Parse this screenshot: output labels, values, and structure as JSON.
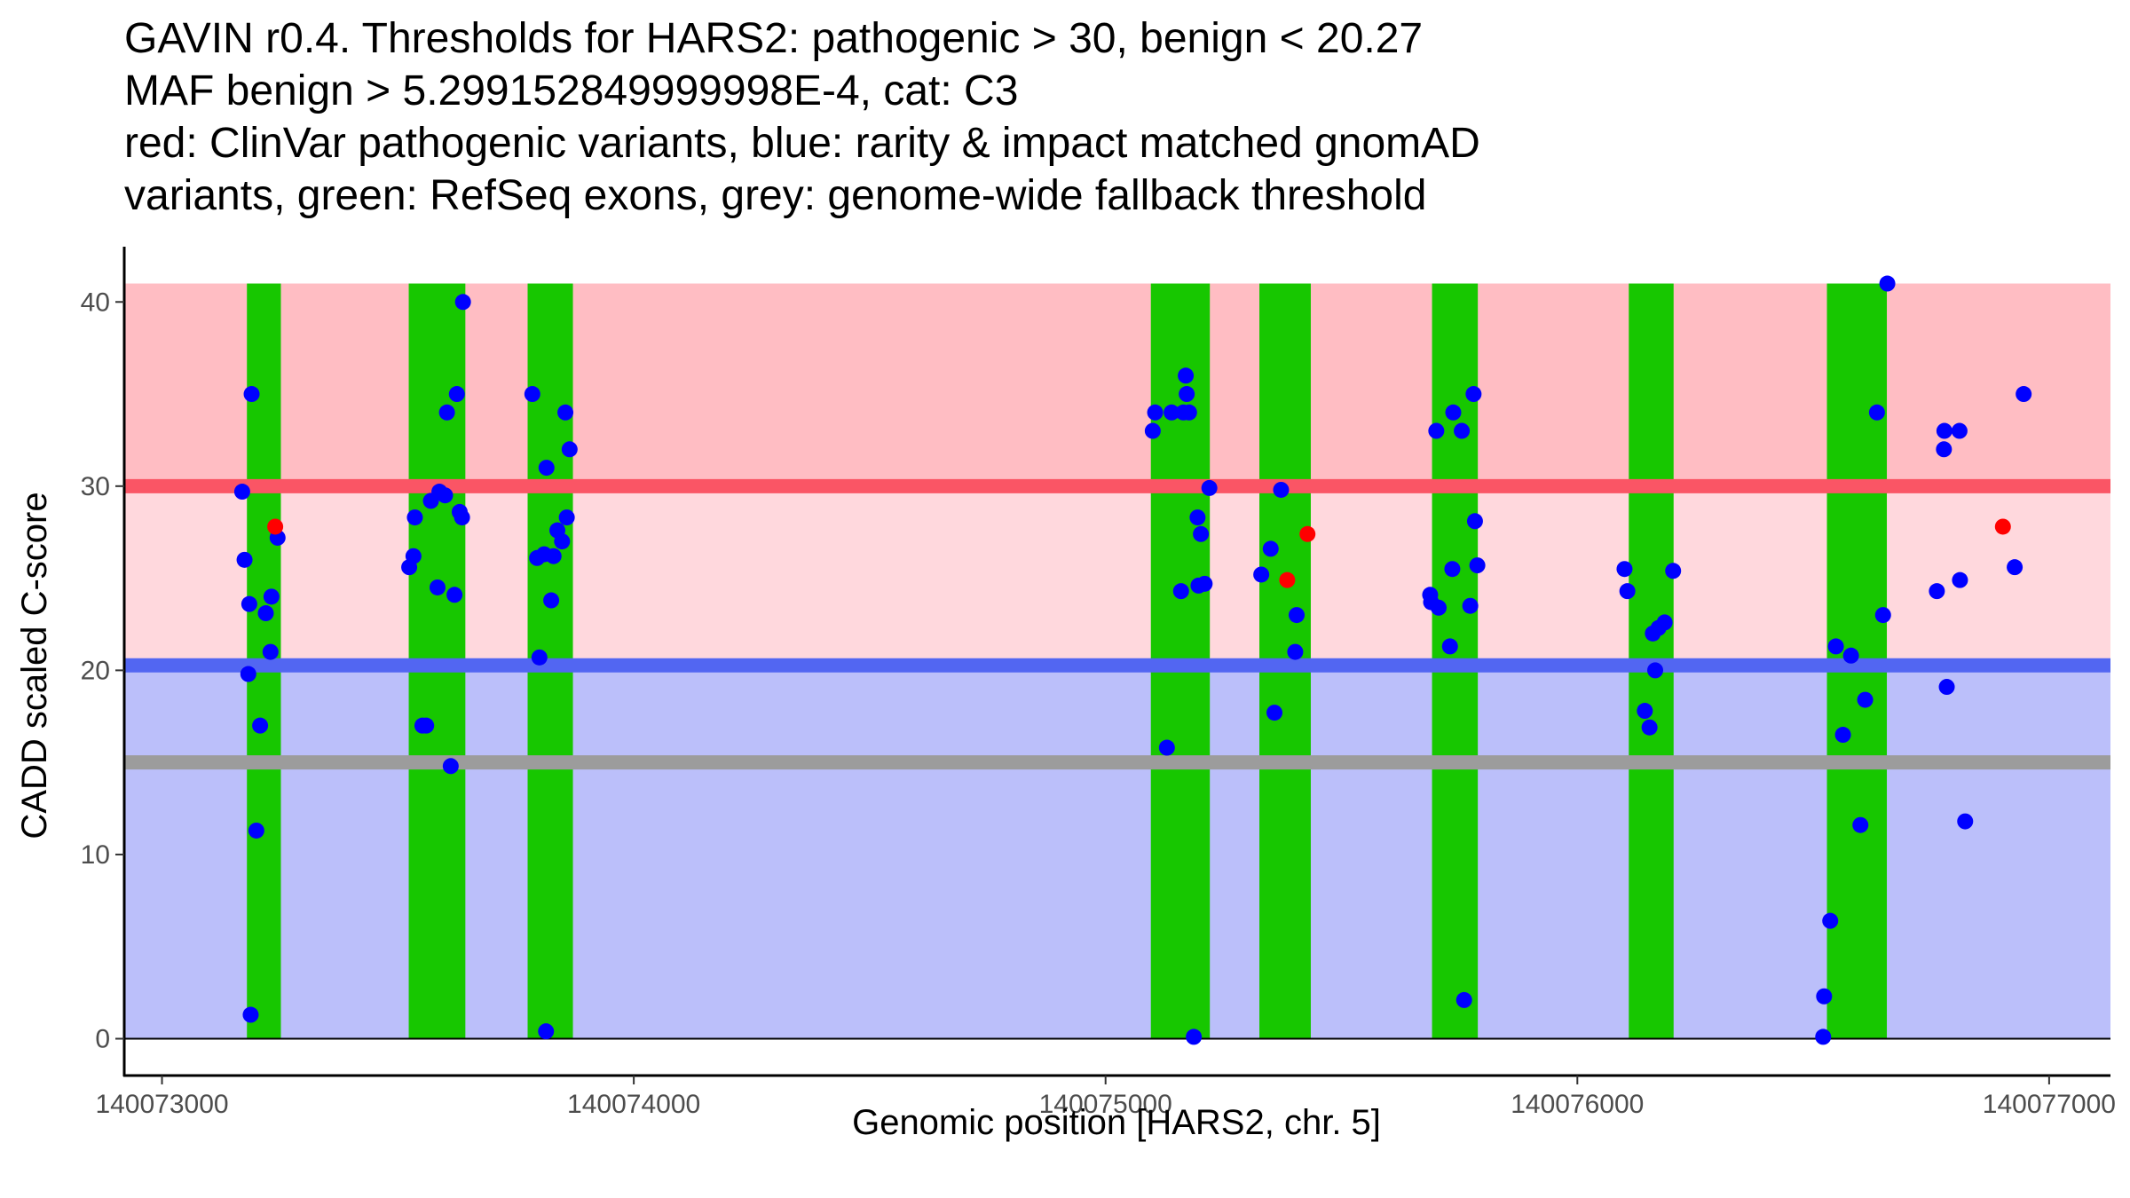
{
  "chart_data": {
    "type": "scatter",
    "title_lines": [
      "GAVIN r0.4. Thresholds for HARS2: pathogenic > 30, benign < 20.27",
      "MAF benign > 5.299152849999998E-4, cat: C3",
      "red: ClinVar pathogenic variants, blue: rarity & impact matched gnomAD",
      "variants, green: RefSeq exons, grey: genome-wide fallback threshold"
    ],
    "xlabel": "Genomic position [HARS2, chr. 5]",
    "ylabel": "CADD scaled C-score",
    "xlim": [
      140072920,
      140077130
    ],
    "ylim": [
      -2,
      43
    ],
    "x_ticks": [
      140073000,
      140074000,
      140075000,
      140076000,
      140077000
    ],
    "x_tick_labels": [
      "140073000",
      "140074000",
      "140075000",
      "140076000",
      "140077000"
    ],
    "y_ticks": [
      0,
      10,
      20,
      30,
      40
    ],
    "y_tick_labels": [
      "0",
      "10",
      "20",
      "30",
      "40"
    ],
    "thresholds": {
      "pathogenic": 30,
      "benign": 20.27,
      "fallback": 15,
      "max": 41
    },
    "exons": [
      [
        140073180,
        140073252
      ],
      [
        140073523,
        140073643
      ],
      [
        140073775,
        140073871
      ],
      [
        140075096,
        140075221
      ],
      [
        140075326,
        140075435
      ],
      [
        140075692,
        140075789
      ],
      [
        140076109,
        140076204
      ],
      [
        140076529,
        140076656
      ]
    ],
    "series": [
      {
        "name": "gnomAD",
        "color": "#0000ff",
        "points": [
          [
            140073170,
            29.7
          ],
          [
            140073175,
            26
          ],
          [
            140073183,
            19.8
          ],
          [
            140073185,
            23.6
          ],
          [
            140073188,
            1.3
          ],
          [
            140073190,
            35
          ],
          [
            140073200,
            11.3
          ],
          [
            140073208,
            17
          ],
          [
            140073220,
            23.1
          ],
          [
            140073230,
            21
          ],
          [
            140073232,
            24
          ],
          [
            140073245,
            27.2
          ],
          [
            140073524,
            25.6
          ],
          [
            140073533,
            26.2
          ],
          [
            140073536,
            28.3
          ],
          [
            140073552,
            17
          ],
          [
            140073560,
            17
          ],
          [
            140073570,
            29.2
          ],
          [
            140073584,
            24.5
          ],
          [
            140073588,
            29.7
          ],
          [
            140073600,
            29.5
          ],
          [
            140073604,
            34
          ],
          [
            140073612,
            14.8
          ],
          [
            140073620,
            24.1
          ],
          [
            140073625,
            35
          ],
          [
            140073631,
            28.6
          ],
          [
            140073636,
            28.3
          ],
          [
            140073638,
            40
          ],
          [
            140073785,
            35
          ],
          [
            140073795,
            26.1
          ],
          [
            140073800,
            20.7
          ],
          [
            140073810,
            26.3
          ],
          [
            140073814,
            0.4
          ],
          [
            140073815,
            31
          ],
          [
            140073825,
            23.8
          ],
          [
            140073830,
            26.2
          ],
          [
            140073838,
            27.6
          ],
          [
            140073848,
            27
          ],
          [
            140073855,
            34
          ],
          [
            140073858,
            28.3
          ],
          [
            140073864,
            32
          ],
          [
            140075100,
            33
          ],
          [
            140075105,
            34
          ],
          [
            140075130,
            15.8
          ],
          [
            140075140,
            34
          ],
          [
            140075160,
            24.3
          ],
          [
            140075165,
            34
          ],
          [
            140075170,
            36
          ],
          [
            140075172,
            35
          ],
          [
            140075177,
            34
          ],
          [
            140075187,
            0.1
          ],
          [
            140075195,
            28.3
          ],
          [
            140075197,
            24.6
          ],
          [
            140075202,
            27.4
          ],
          [
            140075210,
            24.7
          ],
          [
            140075220,
            29.9
          ],
          [
            140075330,
            25.2
          ],
          [
            140075350,
            26.6
          ],
          [
            140075358,
            17.7
          ],
          [
            140075372,
            29.8
          ],
          [
            140075402,
            21
          ],
          [
            140075405,
            23
          ],
          [
            140075688,
            24.1
          ],
          [
            140075690,
            23.7
          ],
          [
            140075701,
            33
          ],
          [
            140075706,
            23.4
          ],
          [
            140075730,
            21.3
          ],
          [
            140075735,
            25.5
          ],
          [
            140075737,
            34
          ],
          [
            140075755,
            33
          ],
          [
            140075760,
            2.1
          ],
          [
            140075773,
            23.5
          ],
          [
            140075780,
            35
          ],
          [
            140075783,
            28.1
          ],
          [
            140075788,
            25.7
          ],
          [
            140076100,
            25.5
          ],
          [
            140076106,
            24.3
          ],
          [
            140076143,
            17.8
          ],
          [
            140076153,
            16.9
          ],
          [
            140076160,
            22
          ],
          [
            140076165,
            20
          ],
          [
            140076172,
            22.3
          ],
          [
            140076185,
            22.6
          ],
          [
            140076203,
            25.4
          ],
          [
            140076521,
            0.1
          ],
          [
            140076523,
            2.3
          ],
          [
            140076536,
            6.4
          ],
          [
            140076548,
            21.3
          ],
          [
            140076563,
            16.5
          ],
          [
            140076580,
            20.8
          ],
          [
            140076600,
            11.6
          ],
          [
            140076610,
            18.4
          ],
          [
            140076635,
            34
          ],
          [
            140076648,
            23
          ],
          [
            140076657,
            41
          ],
          [
            140076762,
            24.3
          ],
          [
            140076777,
            32
          ],
          [
            140076778,
            33
          ],
          [
            140076783,
            19.1
          ],
          [
            140076810,
            33
          ],
          [
            140076811,
            24.9
          ],
          [
            140076822,
            11.8
          ],
          [
            140076927,
            25.6
          ],
          [
            140076946,
            35
          ]
        ]
      },
      {
        "name": "ClinVar pathogenic",
        "color": "#ff0000",
        "points": [
          [
            140073240,
            27.8
          ],
          [
            140075385,
            24.9
          ],
          [
            140075428,
            27.4
          ],
          [
            140076902,
            27.8
          ]
        ]
      }
    ]
  }
}
